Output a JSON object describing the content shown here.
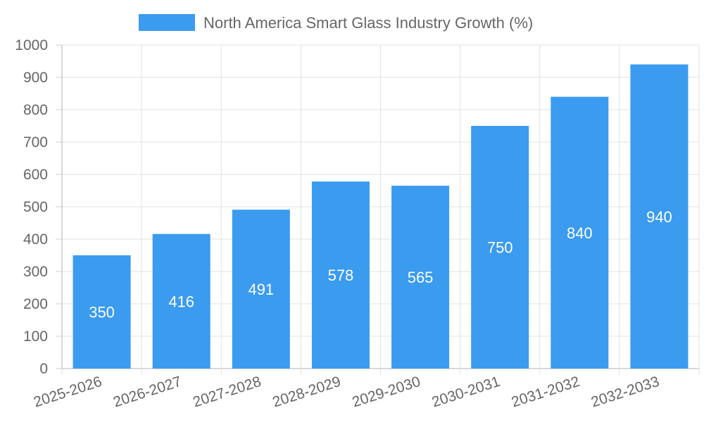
{
  "chart_data": {
    "type": "bar",
    "categories": [
      "2025-2026",
      "2026-2027",
      "2027-2028",
      "2028-2029",
      "2029-2030",
      "2030-2031",
      "2031-2032",
      "2032-2033"
    ],
    "series": [
      {
        "name": "North America Smart Glass Industry Growth (%)",
        "values": [
          350,
          416,
          491,
          578,
          565,
          750,
          840,
          940
        ],
        "color": "#3a9bef"
      }
    ],
    "ylim": [
      0,
      1000
    ],
    "yticks": [
      0,
      100,
      200,
      300,
      400,
      500,
      600,
      700,
      800,
      900,
      1000
    ],
    "grid": true,
    "legend_position": "top-center",
    "data_labels": true
  }
}
